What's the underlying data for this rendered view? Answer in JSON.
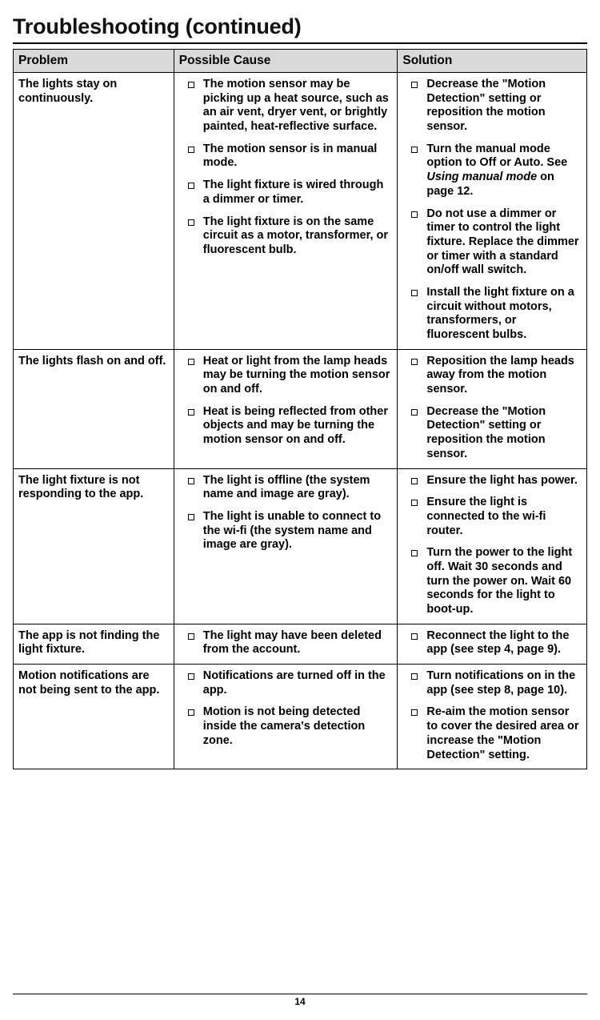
{
  "title": "Troubleshooting (continued)",
  "page_number": "14",
  "columns": {
    "problem": "Problem",
    "cause": "Possible Cause",
    "solution": "Solution"
  },
  "rows": [
    {
      "problem": "The lights stay on continuously.",
      "causes": [
        "The motion sensor may be picking up a heat source, such as an air vent, dryer vent, or brightly painted, heat-reflective surface.",
        "The motion sensor is in manual mode.",
        "The light fixture is wired through a dimmer or timer.",
        "The light fixture is on the same circuit as a motor, transformer, or fluorescent bulb."
      ],
      "solutions": [
        "Decrease the \"Motion Detection\" setting or reposition the motion sensor.",
        "Turn the manual mode option to Off or Auto. See |Using manual mode| on page 12.",
        "Do not use a dimmer or timer to control the light fixture. Replace the dimmer or timer with a standard on/off wall switch.",
        "Install the light fixture on a circuit without motors, transformers, or fluorescent bulbs."
      ]
    },
    {
      "problem": "The lights flash on and off.",
      "causes": [
        "Heat or light from the lamp heads may be turning the motion sensor on and off.",
        "Heat is being reflected from other objects and may be turning the motion sensor on and off."
      ],
      "solutions": [
        "Reposition the lamp heads away from the motion sensor.",
        "Decrease the \"Motion Detection\" setting or reposition the motion sensor."
      ]
    },
    {
      "problem": "The light fixture is not responding to the app.",
      "causes": [
        "The light is offline (the system name and image are gray).",
        "The light is unable to connect to the wi-fi (the system name and image are gray)."
      ],
      "solutions": [
        "Ensure the light has power.",
        "Ensure the light is connected to the wi-fi router.",
        "Turn the power to the light off. Wait 30 seconds and turn the power on. Wait 60 seconds for the light to boot-up."
      ]
    },
    {
      "problem": "The app is not finding the light fixture.",
      "causes": [
        "The light may have been deleted from the account."
      ],
      "solutions": [
        "Reconnect the light to the app (see step 4, page 9)."
      ]
    },
    {
      "problem": "Motion notifications are not being sent to the app.",
      "causes": [
        "Notifications are turned off in the app.",
        "Motion is not being detected inside the camera's detection zone."
      ],
      "solutions": [
        "Turn notifications on in the app (see step 8, page 10).",
        "Re-aim the motion sensor to cover the desired area or increase the \"Motion Detection\" setting."
      ]
    }
  ]
}
